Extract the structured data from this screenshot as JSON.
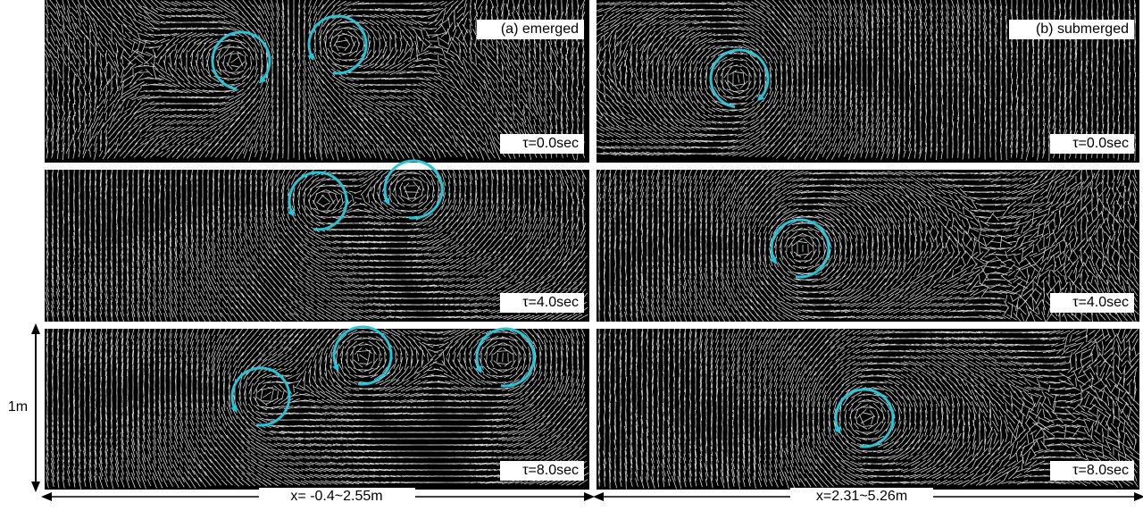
{
  "panels": {
    "a": {
      "label": "(a) emerged",
      "times": [
        "τ=0.0sec",
        "τ=4.0sec",
        "τ=8.0sec"
      ],
      "range": "x= -0.4~2.55m"
    },
    "b": {
      "label": "(b) submerged",
      "times": [
        "τ=0.0sec",
        "τ=4.0sec",
        "τ=8.0sec"
      ],
      "range": "x=2.31~5.26m"
    }
  },
  "scale": "1m"
}
